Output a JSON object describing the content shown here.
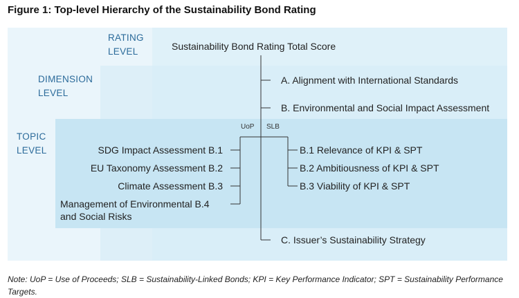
{
  "title": "Figure 1: Top-level Hierarchy of the Sustainability Bond Rating",
  "levels": {
    "rating": [
      "RATING",
      "LEVEL"
    ],
    "dimension": [
      "DIMENSION",
      "LEVEL"
    ],
    "topic": [
      "TOPIC",
      "LEVEL"
    ]
  },
  "root": "Sustainability Bond Rating Total Score",
  "dimensions": {
    "a": "A. Alignment with International Standards",
    "b": "B. Environmental and Social Impact Assessment",
    "c": "C. Issuer’s Sustainability Strategy"
  },
  "branches": {
    "uop": "UoP",
    "slb": "SLB"
  },
  "uop_topics": [
    "SDG Impact Assessment B.1",
    "EU Taxonomy Assessment B.2",
    "Climate Assessment B.3"
  ],
  "uop_topic_4": [
    "Management of Environmental B.4",
    "and Social Risks"
  ],
  "slb_topics": [
    "B.1 Relevance of KPI & SPT",
    "B.2 Ambitiousness of KPI & SPT",
    "B.3 Viability of KPI & SPT"
  ],
  "note": "Note: UoP = Use of Proceeds; SLB = Sustainability-Linked Bonds; KPI = Key Performance Indicator; SPT = Sustainability Performance Targets.",
  "colors": {
    "band_light": "#e9f4fa",
    "band_mid": "#d9edf7",
    "band_dark": "#c6e4f2",
    "level_text": "#2b6a9a",
    "line": "#333333"
  }
}
